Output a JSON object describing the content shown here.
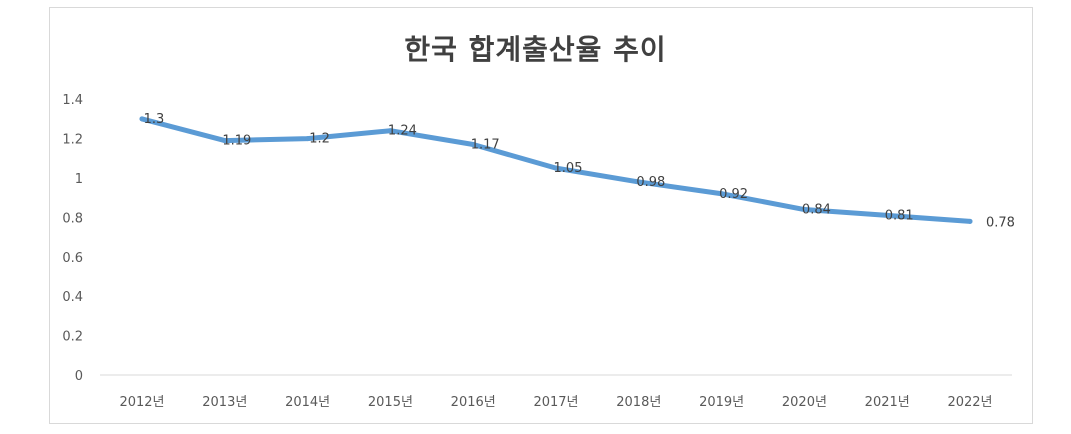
{
  "chart_data": {
    "type": "line",
    "title": "한국 합계출산율 추이",
    "categories": [
      "2012년",
      "2013년",
      "2014년",
      "2015년",
      "2016년",
      "2017년",
      "2018년",
      "2019년",
      "2020년",
      "2021년",
      "2022년"
    ],
    "series": [
      {
        "values": [
          1.3,
          1.19,
          1.2,
          1.24,
          1.17,
          1.05,
          0.98,
          0.92,
          0.84,
          0.81,
          0.78
        ],
        "labels": [
          "1.3",
          "1.19",
          "1.2",
          "1.24",
          "1.17",
          "1.05",
          "0.98",
          "0.92",
          "0.84",
          "0.81",
          "0.78"
        ]
      }
    ],
    "yticks": [
      "0",
      "0.2",
      "0.4",
      "0.6",
      "0.8",
      "1",
      "1.2",
      "1.4"
    ],
    "ylim": [
      0,
      1.4
    ],
    "grid": false,
    "legend": "none",
    "line_color": "#5b9bd5",
    "axis_color": "#d9d9d9"
  }
}
